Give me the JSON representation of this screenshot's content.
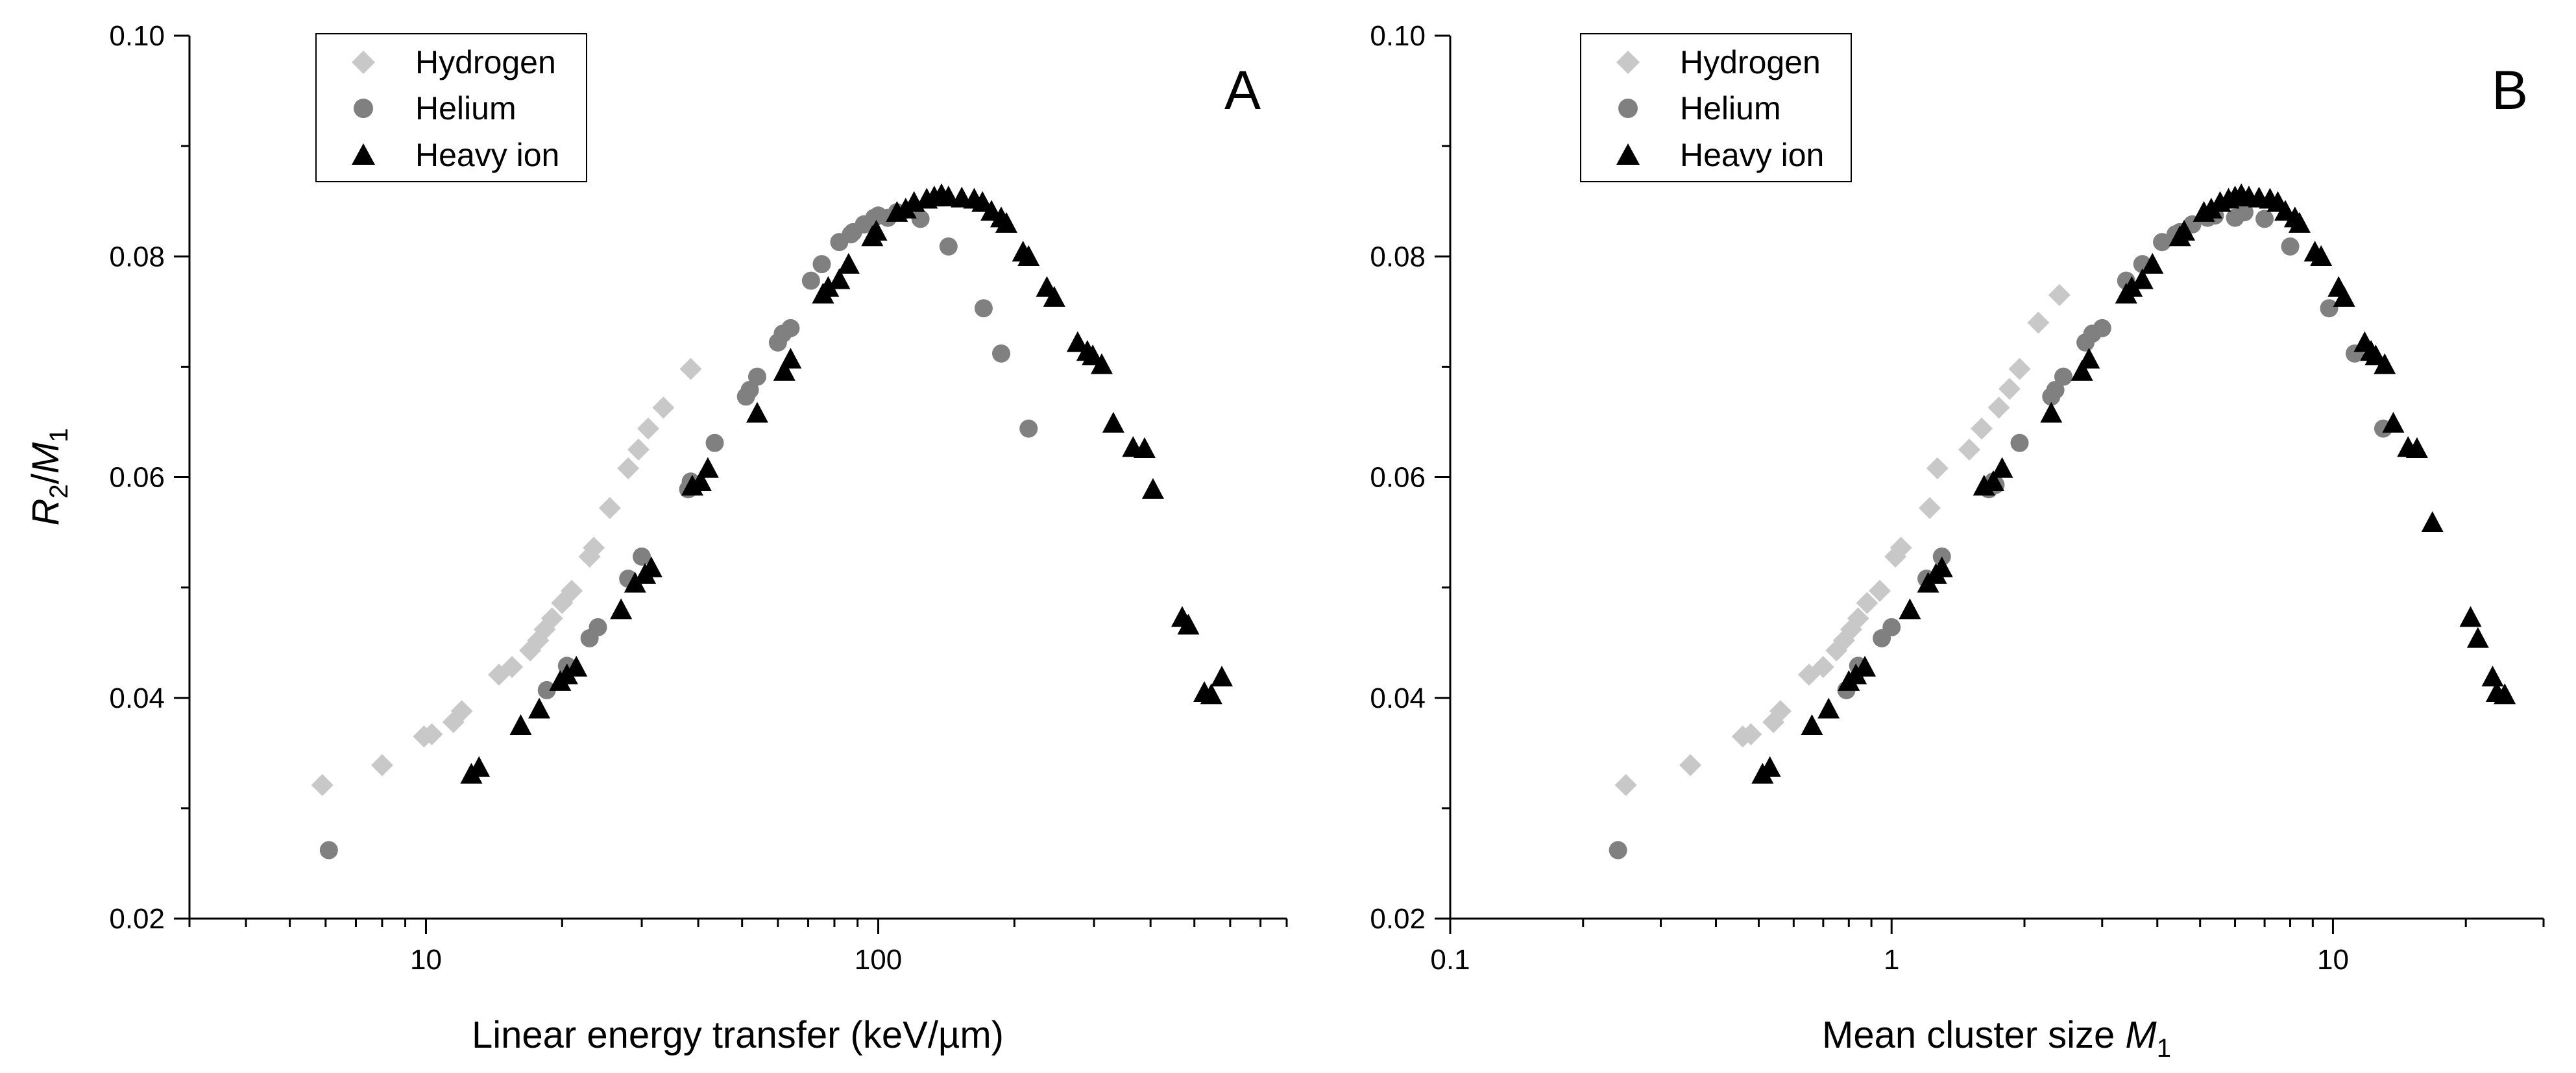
{
  "colors": {
    "hydrogen": "#c8c8c8",
    "helium": "#808080",
    "heavy_ion": "#000000"
  },
  "y_axis_label": {
    "main_a": "R",
    "sub_a": "2",
    "slash": "/",
    "main_b": "M",
    "sub_b": "1"
  },
  "chart_data": [
    {
      "type": "scatter",
      "panel": "A",
      "xscale": "log",
      "xlim": [
        3,
        800
      ],
      "ylim": [
        0.02,
        0.1
      ],
      "xlabel": "Linear energy transfer (keV/µm)",
      "xticks": [
        10,
        100
      ],
      "xtick_labels": [
        "10",
        "100"
      ],
      "yticks": [
        0.02,
        0.04,
        0.06,
        0.08,
        0.1
      ],
      "ytick_labels": [
        "0.02",
        "0.04",
        "0.06",
        "0.08",
        "0.10"
      ],
      "legend_position": "top-left",
      "series": [
        {
          "name": "Hydrogen",
          "marker": "diamond",
          "color": "#c8c8c8",
          "x": [
            5.9,
            8.0,
            9.9,
            10.3,
            11.5,
            12.0,
            14.5,
            15.5,
            17.0,
            17.7,
            18.3,
            19.0,
            20.0,
            21.0,
            23.0,
            23.5,
            25.5,
            28.0,
            29.5,
            31.0,
            33.5,
            38.5
          ],
          "y": [
            0.0321,
            0.0339,
            0.0365,
            0.0367,
            0.0378,
            0.0388,
            0.0421,
            0.0428,
            0.0443,
            0.0452,
            0.0462,
            0.0472,
            0.0486,
            0.0497,
            0.0528,
            0.0536,
            0.0572,
            0.0608,
            0.0625,
            0.0644,
            0.0663,
            0.0698
          ]
        },
        {
          "name": "Helium",
          "marker": "circle",
          "color": "#808080",
          "x": [
            6.1,
            18.5,
            20.5,
            23.0,
            24.0,
            28.0,
            30.0,
            38.0,
            38.5,
            39.0,
            43.5,
            51.0,
            52.0,
            54.0,
            60.0,
            61.5,
            64.0,
            71.0,
            75.0,
            82.0,
            87.0,
            88.0,
            93.0,
            98.0,
            100.0,
            105.0,
            110.0,
            124.0,
            143.0,
            171.0,
            187.0,
            215.0
          ],
          "y": [
            0.0262,
            0.0407,
            0.0429,
            0.0454,
            0.0464,
            0.0508,
            0.0528,
            0.0589,
            0.0596,
            0.0593,
            0.0631,
            0.0673,
            0.0679,
            0.0691,
            0.0722,
            0.073,
            0.0735,
            0.0778,
            0.0793,
            0.0813,
            0.082,
            0.0822,
            0.0829,
            0.0835,
            0.0837,
            0.0835,
            0.084,
            0.0834,
            0.0809,
            0.0753,
            0.0712,
            0.0644
          ]
        },
        {
          "name": "Heavy ion",
          "marker": "triangle",
          "color": "#000000",
          "x": [
            12.6,
            13.1,
            16.2,
            17.8,
            19.8,
            20.5,
            21.5,
            27.0,
            29.0,
            30.5,
            31.5,
            38.8,
            40.5,
            42.0,
            54.0,
            62.0,
            64.0,
            75.5,
            77.5,
            82.0,
            86.0,
            97.0,
            99.0,
            110.0,
            115.0,
            120.0,
            128.0,
            133.0,
            138.0,
            143.0,
            153.0,
            163.0,
            170.0,
            178.0,
            187.0,
            192.0,
            209.0,
            215.0,
            236.0,
            245.0,
            276.0,
            290.0,
            298.0,
            312.0,
            331.0,
            366.0,
            388.0,
            405.0,
            470.0,
            485.0,
            526.0,
            545.0,
            575.0
          ],
          "y": [
            0.033,
            0.0336,
            0.0374,
            0.0389,
            0.0414,
            0.042,
            0.0427,
            0.0479,
            0.0503,
            0.0511,
            0.0517,
            0.0591,
            0.0595,
            0.0607,
            0.0657,
            0.0695,
            0.0706,
            0.0765,
            0.0771,
            0.0778,
            0.0792,
            0.0817,
            0.0822,
            0.0839,
            0.0842,
            0.0848,
            0.0851,
            0.0853,
            0.0855,
            0.0853,
            0.0852,
            0.0851,
            0.0848,
            0.084,
            0.0834,
            0.0829,
            0.0803,
            0.0799,
            0.0771,
            0.0762,
            0.0721,
            0.0713,
            0.0709,
            0.0701,
            0.0648,
            0.0626,
            0.0625,
            0.0588,
            0.0472,
            0.0465,
            0.0404,
            0.0402,
            0.0418
          ]
        }
      ]
    },
    {
      "type": "scatter",
      "panel": "B",
      "xscale": "log",
      "xlim": [
        0.1,
        30
      ],
      "ylim": [
        0.02,
        0.1
      ],
      "xlabel_prefix": "Mean cluster size ",
      "xlabel_var": "M",
      "xlabel_sub": "1",
      "xticks": [
        0.1,
        1,
        10
      ],
      "xtick_labels": [
        "0.1",
        "1",
        "10"
      ],
      "yticks": [
        0.02,
        0.04,
        0.06,
        0.08,
        0.1
      ],
      "ytick_labels": [
        "0.02",
        "0.04",
        "0.06",
        "0.08",
        "0.10"
      ],
      "legend_position": "top-left",
      "series": [
        {
          "name": "Hydrogen",
          "marker": "diamond",
          "color": "#c8c8c8",
          "x": [
            0.25,
            0.35,
            0.46,
            0.48,
            0.54,
            0.56,
            0.65,
            0.7,
            0.75,
            0.78,
            0.81,
            0.84,
            0.88,
            0.94,
            1.02,
            1.05,
            1.22,
            1.27,
            1.5,
            1.6,
            1.75,
            1.85,
            1.95,
            2.15,
            2.4
          ],
          "y": [
            0.0321,
            0.0339,
            0.0365,
            0.0367,
            0.0378,
            0.0388,
            0.0421,
            0.0428,
            0.0443,
            0.0452,
            0.0462,
            0.0472,
            0.0486,
            0.0497,
            0.0528,
            0.0536,
            0.0572,
            0.0608,
            0.0625,
            0.0644,
            0.0663,
            0.068,
            0.0698,
            0.074,
            0.0765
          ]
        },
        {
          "name": "Helium",
          "marker": "circle",
          "color": "#808080",
          "x": [
            0.24,
            0.79,
            0.84,
            0.95,
            1.0,
            1.2,
            1.3,
            1.66,
            1.7,
            1.72,
            1.95,
            2.3,
            2.35,
            2.45,
            2.75,
            2.85,
            3.0,
            3.4,
            3.7,
            4.1,
            4.4,
            4.5,
            4.8,
            5.2,
            5.4,
            6.0,
            6.3,
            7.0,
            8.0,
            9.8,
            11.2,
            13.0
          ],
          "y": [
            0.0262,
            0.0407,
            0.0429,
            0.0454,
            0.0464,
            0.0508,
            0.0528,
            0.0589,
            0.0596,
            0.0593,
            0.0631,
            0.0673,
            0.0679,
            0.0691,
            0.0722,
            0.073,
            0.0735,
            0.0778,
            0.0793,
            0.0813,
            0.082,
            0.0822,
            0.0829,
            0.0835,
            0.0837,
            0.0835,
            0.084,
            0.0834,
            0.0809,
            0.0753,
            0.0712,
            0.0644
          ]
        },
        {
          "name": "Heavy ion",
          "marker": "triangle",
          "color": "#000000",
          "x": [
            0.51,
            0.53,
            0.66,
            0.72,
            0.8,
            0.83,
            0.87,
            1.1,
            1.21,
            1.26,
            1.3,
            1.62,
            1.7,
            1.78,
            2.3,
            2.7,
            2.8,
            3.4,
            3.5,
            3.7,
            3.9,
            4.5,
            4.6,
            5.1,
            5.3,
            5.55,
            5.8,
            6.0,
            6.2,
            6.45,
            6.8,
            7.2,
            7.5,
            7.8,
            8.2,
            8.4,
            9.1,
            9.4,
            10.3,
            10.6,
            11.8,
            12.2,
            12.5,
            13.1,
            13.7,
            14.8,
            15.5,
            16.8,
            20.5,
            21.3,
            23.5,
            24.5,
            23.0
          ],
          "y": [
            0.033,
            0.0336,
            0.0374,
            0.0389,
            0.0414,
            0.042,
            0.0427,
            0.0479,
            0.0503,
            0.0511,
            0.0517,
            0.0591,
            0.0595,
            0.0607,
            0.0657,
            0.0695,
            0.0706,
            0.0765,
            0.0771,
            0.0778,
            0.0792,
            0.0817,
            0.0822,
            0.0839,
            0.0842,
            0.0848,
            0.0851,
            0.0853,
            0.0855,
            0.0853,
            0.0852,
            0.0851,
            0.0848,
            0.084,
            0.0834,
            0.0829,
            0.0803,
            0.0799,
            0.0771,
            0.0762,
            0.0721,
            0.0713,
            0.0709,
            0.0701,
            0.0648,
            0.0626,
            0.0625,
            0.0558,
            0.0472,
            0.0453,
            0.0404,
            0.0402,
            0.0418
          ]
        }
      ]
    }
  ]
}
